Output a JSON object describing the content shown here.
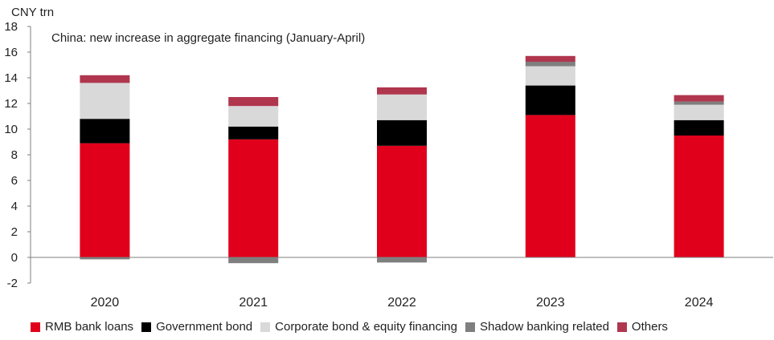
{
  "chart_data": {
    "type": "bar",
    "stacked": true,
    "title": "China: new increase in aggregate financing (January-April)",
    "unit_label": "CNY trn",
    "categories": [
      "2020",
      "2021",
      "2022",
      "2023",
      "2024"
    ],
    "ylim": [
      -2,
      18
    ],
    "yticks": [
      -2,
      0,
      2,
      4,
      6,
      8,
      10,
      12,
      14,
      16,
      18
    ],
    "legend_position": "bottom",
    "series": [
      {
        "name": "RMB bank loans",
        "color": "#e0001b",
        "values": [
          8.9,
          9.2,
          8.7,
          11.1,
          9.5
        ]
      },
      {
        "name": "Government bond",
        "color": "#000000",
        "values": [
          1.9,
          1.0,
          2.0,
          2.3,
          1.2
        ]
      },
      {
        "name": "Corporate bond & equity financing",
        "color": "#d9d9d9",
        "values": [
          2.8,
          1.6,
          2.0,
          1.5,
          1.2
        ]
      },
      {
        "name": "Shadow banking related",
        "color": "#7f7f7f",
        "values": [
          -0.15,
          -0.45,
          -0.4,
          0.35,
          0.25
        ]
      },
      {
        "name": "Others",
        "color": "#b0364e",
        "values": [
          0.6,
          0.7,
          0.55,
          0.45,
          0.5
        ]
      }
    ]
  }
}
